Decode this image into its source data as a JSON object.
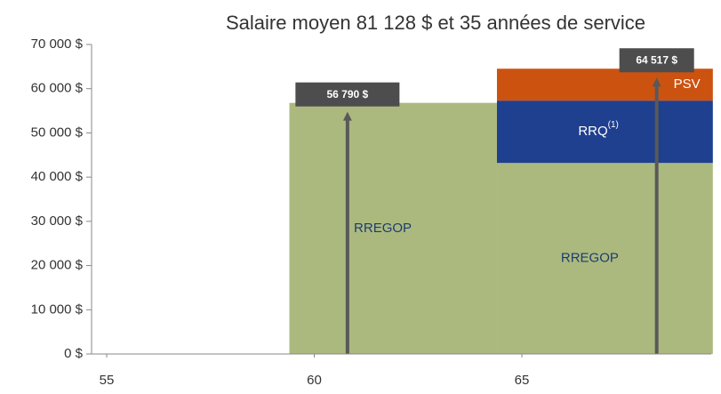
{
  "chart_data": {
    "type": "stacked_bar",
    "title": "Salaire moyen 81 128 $ et 35 années de service",
    "ylim": [
      0,
      70000
    ],
    "yticks": [
      {
        "value": 0,
        "label": "0 $"
      },
      {
        "value": 10000,
        "label": "10 000 $"
      },
      {
        "value": 20000,
        "label": "20 000 $"
      },
      {
        "value": 30000,
        "label": "30 000 $"
      },
      {
        "value": 40000,
        "label": "40 000 $"
      },
      {
        "value": 50000,
        "label": "50 000 $"
      },
      {
        "value": 60000,
        "label": "60 000 $"
      },
      {
        "value": 70000,
        "label": "70 000 $"
      }
    ],
    "xlim": [
      55,
      69.6
    ],
    "xticks": [
      55,
      60,
      65
    ],
    "bars": [
      {
        "x": [
          59.4,
          64.4
        ],
        "segments": [
          {
            "name": "RREGOP",
            "color": "#abb97f",
            "value": 56790
          }
        ],
        "total": {
          "value": 56790,
          "label": "56 790 $"
        }
      },
      {
        "x": [
          64.4,
          69.6
        ],
        "segments": [
          {
            "name": "RREGOP",
            "color": "#abb97f",
            "value": 43200
          },
          {
            "name": "RRQ",
            "note": "(1)",
            "color": "#1f3f8f",
            "value": 14100
          },
          {
            "name": "PSV",
            "color": "#cc5210",
            "value": 7217
          }
        ],
        "total": {
          "value": 64517,
          "label": "64 517 $"
        }
      }
    ]
  }
}
